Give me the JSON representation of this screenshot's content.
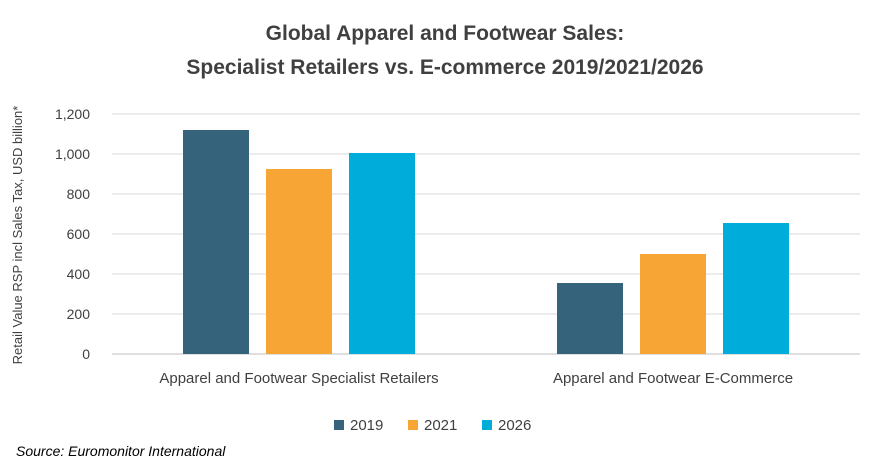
{
  "chart_data": {
    "type": "bar",
    "title_lines": [
      "Global Apparel and Footwear Sales:",
      "Specialist Retailers vs. E-commerce 2019/2021/2026"
    ],
    "ylabel": "Retail Value RSP incl Sales Tax, USD billion*",
    "xlabel": "",
    "ylim": [
      0,
      1200
    ],
    "yticks": [
      "0",
      "200",
      "400",
      "600",
      "800",
      "1,000",
      "1,200"
    ],
    "yticks_values": [
      0,
      200,
      400,
      600,
      800,
      1000,
      1200
    ],
    "categories": [
      "Apparel and Footwear Specialist Retailers",
      "Apparel and Footwear E-Commerce"
    ],
    "series": [
      {
        "name": "2019",
        "color": "#35637c",
        "values": [
          1120,
          355
        ]
      },
      {
        "name": "2021",
        "color": "#f7a535",
        "values": [
          925,
          500
        ]
      },
      {
        "name": "2026",
        "color": "#00acd9",
        "values": [
          1005,
          655
        ]
      }
    ],
    "grid": true,
    "legend_position": "bottom"
  },
  "source": "Source: Euromonitor International"
}
